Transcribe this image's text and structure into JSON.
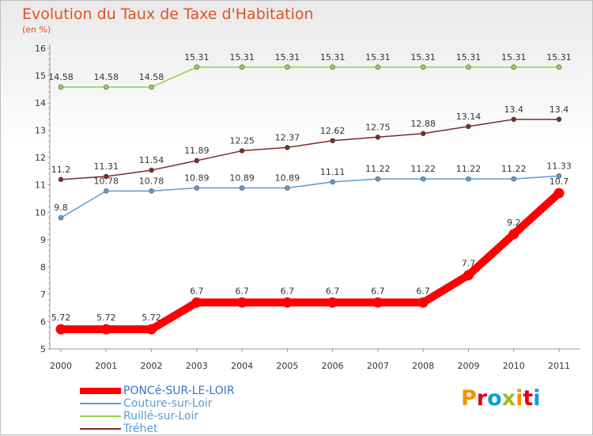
{
  "header": {
    "title": "Evolution du Taux de Taxe d'Habitation",
    "subtitle": "(en %)"
  },
  "logo": {
    "text": "Proxiti",
    "colors": [
      "#f39200",
      "#e2001a",
      "#009fe3",
      "#95c11f",
      "#f39200",
      "#e2001a",
      "#009fe3"
    ]
  },
  "chart_data": {
    "type": "line",
    "title": "Evolution du Taux de Taxe d'Habitation",
    "ylabel": "(en %)",
    "xlabel": "",
    "x": [
      "2000",
      "2001",
      "2002",
      "2003",
      "2004",
      "2005",
      "2006",
      "2007",
      "2008",
      "2009",
      "2010",
      "2011"
    ],
    "ylim": [
      5,
      16
    ],
    "yticks": [
      "5",
      "6",
      "7",
      "8",
      "9",
      "10",
      "11",
      "12",
      "13",
      "14",
      "15",
      "16"
    ],
    "grid": false,
    "legend": "bottom-left",
    "series": [
      {
        "name": "PONCé-SUR-LE-LOIR",
        "color": "#ff0000",
        "emphasis": true,
        "values": [
          5.72,
          5.72,
          5.72,
          6.7,
          6.7,
          6.7,
          6.7,
          6.7,
          6.7,
          7.7,
          9.2,
          10.7
        ],
        "labels": [
          "5.72",
          "5.72",
          "5.72",
          "6.7",
          "6.7",
          "6.7",
          "6.7",
          "6.7",
          "6.7",
          "7.7",
          "9.2",
          "10.7"
        ]
      },
      {
        "name": "Couture-sur-Loir",
        "color": "#5b9bd5",
        "emphasis": false,
        "values": [
          9.8,
          10.78,
          10.78,
          10.89,
          10.89,
          10.89,
          11.11,
          11.22,
          11.22,
          11.22,
          11.22,
          11.33
        ],
        "labels": [
          "9.8",
          "10.78",
          "10.78",
          "10.89",
          "10.89",
          "10.89",
          "11.11",
          "11.22",
          "11.22",
          "11.22",
          "11.22",
          "11.33"
        ]
      },
      {
        "name": "Ruillé-sur-Loir",
        "color": "#8fd14f",
        "emphasis": false,
        "values": [
          14.58,
          14.58,
          14.58,
          15.31,
          15.31,
          15.31,
          15.31,
          15.31,
          15.31,
          15.31,
          15.31,
          15.31
        ],
        "labels": [
          "14.58",
          "14.58",
          "14.58",
          "15.31",
          "15.31",
          "15.31",
          "15.31",
          "15.31",
          "15.31",
          "15.31",
          "15.31",
          "15.31"
        ]
      },
      {
        "name": "Tréhet",
        "color": "#7b2a2a",
        "emphasis": false,
        "values": [
          11.2,
          11.31,
          11.54,
          11.89,
          12.25,
          12.37,
          12.62,
          12.75,
          12.88,
          13.14,
          13.4,
          13.4
        ],
        "labels": [
          "11.2",
          "11.31",
          "11.54",
          "11.89",
          "12.25",
          "12.37",
          "12.62",
          "12.75",
          "12.88",
          "13.14",
          "13.4",
          "13.4"
        ]
      }
    ]
  }
}
